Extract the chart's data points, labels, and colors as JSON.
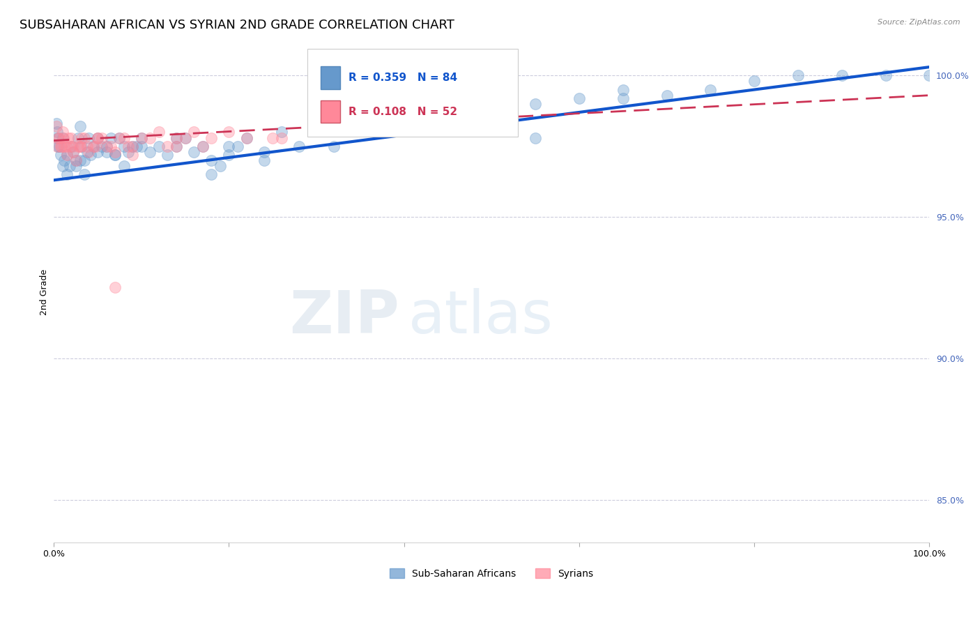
{
  "title": "SUBSAHARAN AFRICAN VS SYRIAN 2ND GRADE CORRELATION CHART",
  "source": "Source: ZipAtlas.com",
  "ylabel": "2nd Grade",
  "yticks": [
    85.0,
    90.0,
    95.0,
    100.0
  ],
  "ytick_labels": [
    "85.0%",
    "90.0%",
    "95.0%",
    "100.0%"
  ],
  "legend_blue_label": "Sub-Saharan Africans",
  "legend_pink_label": "Syrians",
  "legend_r_blue": "R = 0.359",
  "legend_n_blue": "N = 84",
  "legend_r_pink": "R = 0.108",
  "legend_n_pink": "N = 52",
  "blue_color": "#6699CC",
  "pink_color": "#FF8899",
  "trendline_blue_color": "#1155CC",
  "trendline_pink_color": "#CC3355",
  "watermark_zip": "ZIP",
  "watermark_atlas": "atlas",
  "blue_x": [
    0.5,
    1.0,
    1.2,
    1.5,
    1.8,
    2.0,
    2.2,
    2.5,
    2.8,
    3.0,
    3.2,
    3.5,
    3.8,
    4.0,
    4.2,
    4.5,
    5.0,
    5.5,
    6.0,
    6.5,
    7.0,
    7.5,
    8.0,
    9.0,
    10.0,
    11.0,
    12.0,
    13.0,
    14.0,
    15.0,
    16.0,
    17.0,
    18.0,
    19.0,
    20.0,
    21.0,
    22.0,
    24.0,
    26.0,
    28.0,
    30.0,
    32.0,
    35.0,
    38.0,
    40.0,
    42.0,
    45.0,
    50.0,
    55.0,
    60.0,
    65.0,
    70.0,
    75.0,
    80.0,
    85.0,
    90.0,
    95.0,
    100.0,
    42.0,
    24.0,
    18.0,
    8.0,
    5.0,
    3.5,
    2.5,
    1.5,
    1.0,
    0.8,
    0.6,
    0.5,
    0.4,
    3.0,
    6.0,
    50.0,
    20.0,
    14.0,
    65.0,
    10.0,
    8.5,
    7.0,
    9.5,
    55.0,
    35.0,
    0.3
  ],
  "blue_y": [
    97.5,
    97.8,
    97.0,
    97.2,
    96.8,
    97.5,
    97.3,
    97.0,
    97.8,
    98.2,
    97.5,
    97.0,
    97.3,
    97.8,
    97.2,
    97.5,
    97.8,
    97.5,
    97.3,
    97.8,
    97.2,
    97.8,
    97.5,
    97.5,
    97.8,
    97.3,
    97.5,
    97.2,
    97.5,
    97.8,
    97.3,
    97.5,
    97.0,
    96.8,
    97.2,
    97.5,
    97.8,
    97.3,
    98.0,
    97.5,
    98.2,
    97.5,
    98.5,
    98.0,
    98.8,
    98.5,
    99.0,
    98.5,
    99.0,
    99.2,
    99.5,
    99.3,
    99.5,
    99.8,
    100.0,
    100.0,
    100.0,
    100.0,
    98.5,
    97.0,
    96.5,
    96.8,
    97.3,
    96.5,
    96.8,
    96.5,
    96.8,
    97.2,
    97.5,
    97.8,
    98.0,
    97.0,
    97.5,
    98.8,
    97.5,
    97.8,
    99.2,
    97.5,
    97.3,
    97.2,
    97.5,
    97.8,
    99.0,
    98.3
  ],
  "pink_x": [
    0.3,
    0.5,
    0.8,
    1.0,
    1.2,
    1.5,
    1.8,
    2.0,
    2.2,
    2.5,
    3.0,
    3.5,
    4.0,
    4.5,
    5.0,
    6.0,
    7.0,
    8.0,
    9.0,
    10.0,
    12.0,
    14.0,
    16.0,
    18.0,
    20.0,
    25.0,
    0.4,
    0.6,
    0.9,
    1.1,
    1.4,
    1.7,
    2.1,
    2.8,
    3.2,
    3.8,
    4.8,
    5.5,
    6.5,
    7.5,
    8.5,
    11.0,
    13.0,
    15.0,
    17.0,
    22.0,
    26.0,
    7.0,
    9.0,
    14.0,
    5.0,
    3.0
  ],
  "pink_y": [
    98.2,
    97.8,
    97.5,
    98.0,
    97.5,
    97.2,
    97.5,
    97.8,
    97.3,
    97.0,
    97.5,
    97.8,
    97.3,
    97.5,
    97.8,
    97.5,
    97.3,
    97.8,
    97.5,
    97.8,
    98.0,
    97.8,
    98.0,
    97.8,
    98.0,
    97.8,
    97.5,
    97.8,
    97.5,
    97.8,
    97.5,
    97.8,
    97.5,
    97.5,
    97.8,
    97.5,
    97.5,
    97.8,
    97.5,
    97.8,
    97.5,
    97.8,
    97.5,
    97.8,
    97.5,
    97.8,
    97.8,
    92.5,
    97.2,
    97.5,
    97.8,
    97.5
  ],
  "blue_trendline_y_start": 96.3,
  "blue_trendline_y_end": 100.3,
  "pink_trendline_y_start": 97.7,
  "pink_trendline_y_end": 99.3,
  "xmin": 0.0,
  "xmax": 100.0,
  "ymin": 83.5,
  "ymax": 101.2,
  "grid_color": "#CCCCDD",
  "background_color": "#FFFFFF",
  "axis_label_color": "#4466BB",
  "title_fontsize": 13,
  "axis_label_fontsize": 9,
  "tick_fontsize": 9,
  "marker_size": 130,
  "marker_alpha": 0.38,
  "marker_linewidth": 0.8
}
